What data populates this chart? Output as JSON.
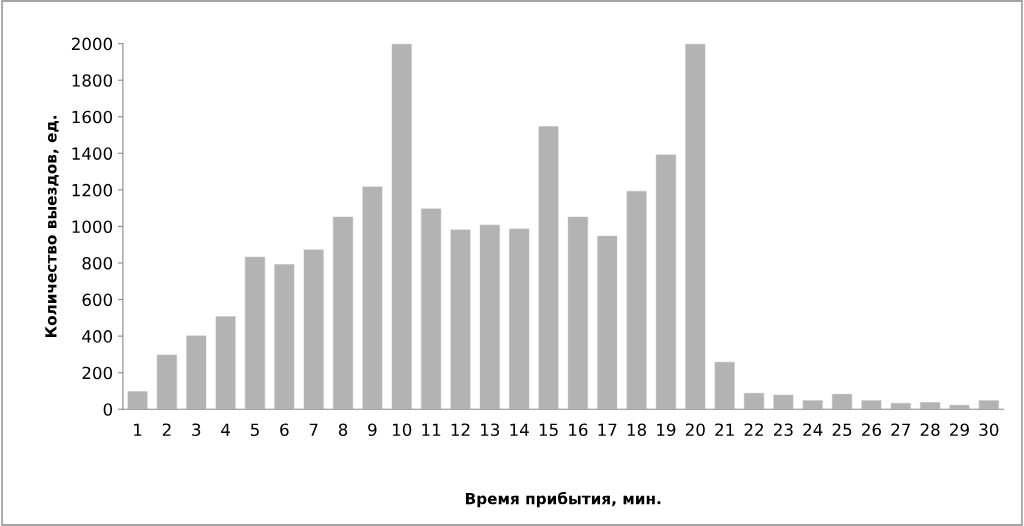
{
  "chart_data": {
    "type": "bar",
    "xlabel": "Время прибытия, мин.",
    "ylabel": "Количество выездов, ед.",
    "categories": [
      "1",
      "2",
      "3",
      "4",
      "5",
      "6",
      "7",
      "8",
      "9",
      "10",
      "11",
      "12",
      "13",
      "14",
      "15",
      "16",
      "17",
      "18",
      "19",
      "20",
      "21",
      "22",
      "23",
      "24",
      "25",
      "26",
      "27",
      "28",
      "29",
      "30"
    ],
    "values": [
      100,
      300,
      405,
      510,
      835,
      795,
      875,
      1055,
      1220,
      2000,
      1100,
      985,
      1010,
      990,
      1550,
      1055,
      950,
      1195,
      1395,
      2000,
      260,
      90,
      80,
      50,
      85,
      50,
      35,
      40,
      25,
      50
    ],
    "color": "#b3b3b3",
    "ylim": [
      0,
      2000
    ],
    "yticks": [
      0,
      200,
      400,
      600,
      800,
      1000,
      1200,
      1400,
      1600,
      1800,
      2000
    ],
    "grid": false,
    "legend": false
  }
}
